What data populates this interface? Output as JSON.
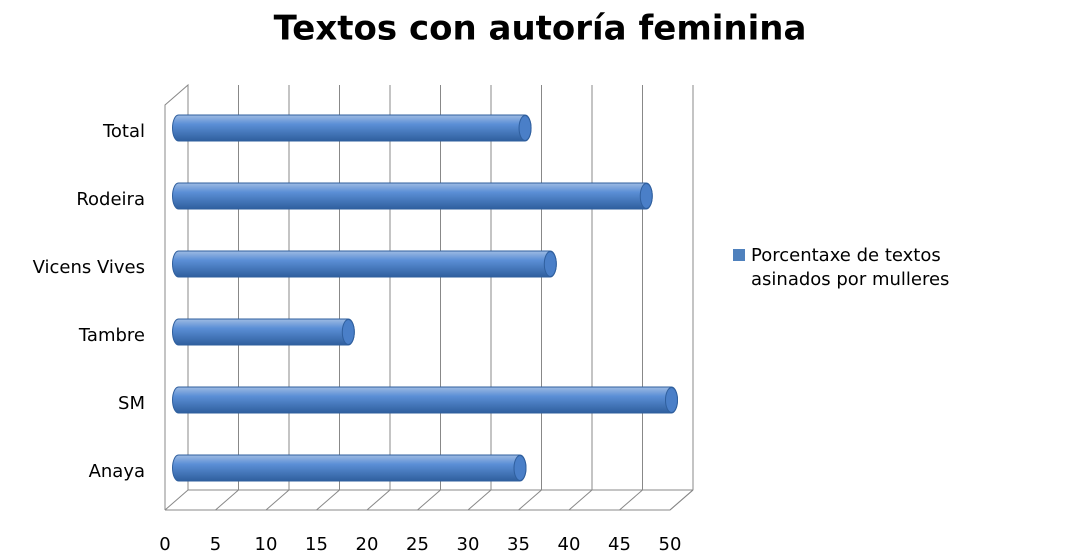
{
  "chart_data": {
    "type": "bar",
    "orientation": "horizontal",
    "title": "Textos con autoría feminina",
    "categories": [
      "Total",
      "Rodeira",
      "Vicens Vives",
      "Tambre",
      "SM",
      "Anaya"
    ],
    "series": [
      {
        "name": "Porcentaxe de textos asinados por mulleres",
        "color": "#4f81bd",
        "values": [
          35.5,
          47.5,
          38,
          18,
          50,
          35
        ]
      }
    ],
    "xlim": [
      0,
      50
    ],
    "xticks": [
      0,
      5,
      10,
      15,
      20,
      25,
      30,
      35,
      40,
      45,
      50
    ],
    "grid": true,
    "legend": "right"
  }
}
